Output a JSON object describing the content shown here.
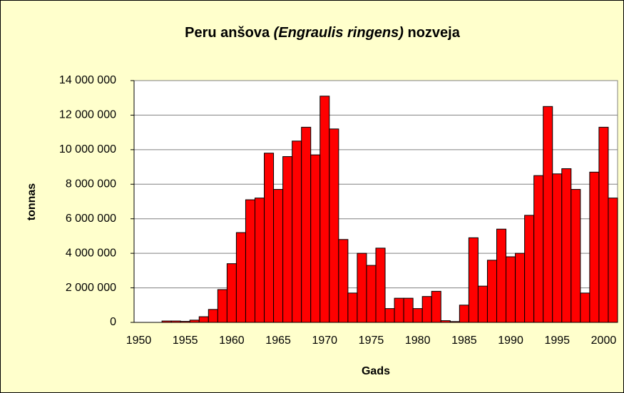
{
  "chart_data": {
    "type": "bar",
    "title": [
      "Peru anšova ",
      "(Engraulis ringens)",
      " nozveja"
    ],
    "x_label": "Gads",
    "y_label": "tonnas",
    "categories": [
      "1950",
      null,
      null,
      null,
      null,
      "1955",
      null,
      null,
      null,
      null,
      "1960",
      null,
      null,
      null,
      null,
      "1965",
      null,
      null,
      null,
      null,
      "1970",
      null,
      null,
      null,
      null,
      "1975",
      null,
      null,
      null,
      null,
      "1980",
      null,
      null,
      null,
      null,
      "1985",
      null,
      null,
      null,
      null,
      "1990",
      null,
      null,
      null,
      null,
      "1995",
      null,
      null,
      null,
      null,
      "2000",
      null
    ],
    "values": [
      0,
      0,
      0,
      80000,
      80000,
      60000,
      130000,
      330000,
      750000,
      1900000,
      3400000,
      5200000,
      7100000,
      7200000,
      9800000,
      7700000,
      9600000,
      10500000,
      11300000,
      9700000,
      13100000,
      11200000,
      4800000,
      1700000,
      4000000,
      3300000,
      4300000,
      800000,
      1400000,
      1400000,
      800000,
      1500000,
      1800000,
      100000,
      50000,
      1000000,
      4900000,
      2100000,
      3600000,
      5400000,
      3800000,
      4000000,
      6200000,
      8500000,
      12500000,
      8600000,
      8900000,
      7700000,
      1700000,
      8700000,
      11300000,
      7200000
    ],
    "color": "#ff0000",
    "ylim": [
      0,
      14000000
    ],
    "yticks": [
      0,
      {
        "value": 2000000,
        "label": "2 000 000"
      },
      {
        "value": 4000000,
        "label": "4 000 000"
      },
      {
        "value": 6000000,
        "label": "6 000 000"
      },
      {
        "value": 8000000,
        "label": "8 000 000"
      },
      {
        "value": 10000000,
        "label": "10 000 000"
      },
      {
        "value": 12000000,
        "label": "12 000 000"
      },
      {
        "value": 14000000,
        "label": "14 000 000"
      }
    ],
    "grid": true
  }
}
